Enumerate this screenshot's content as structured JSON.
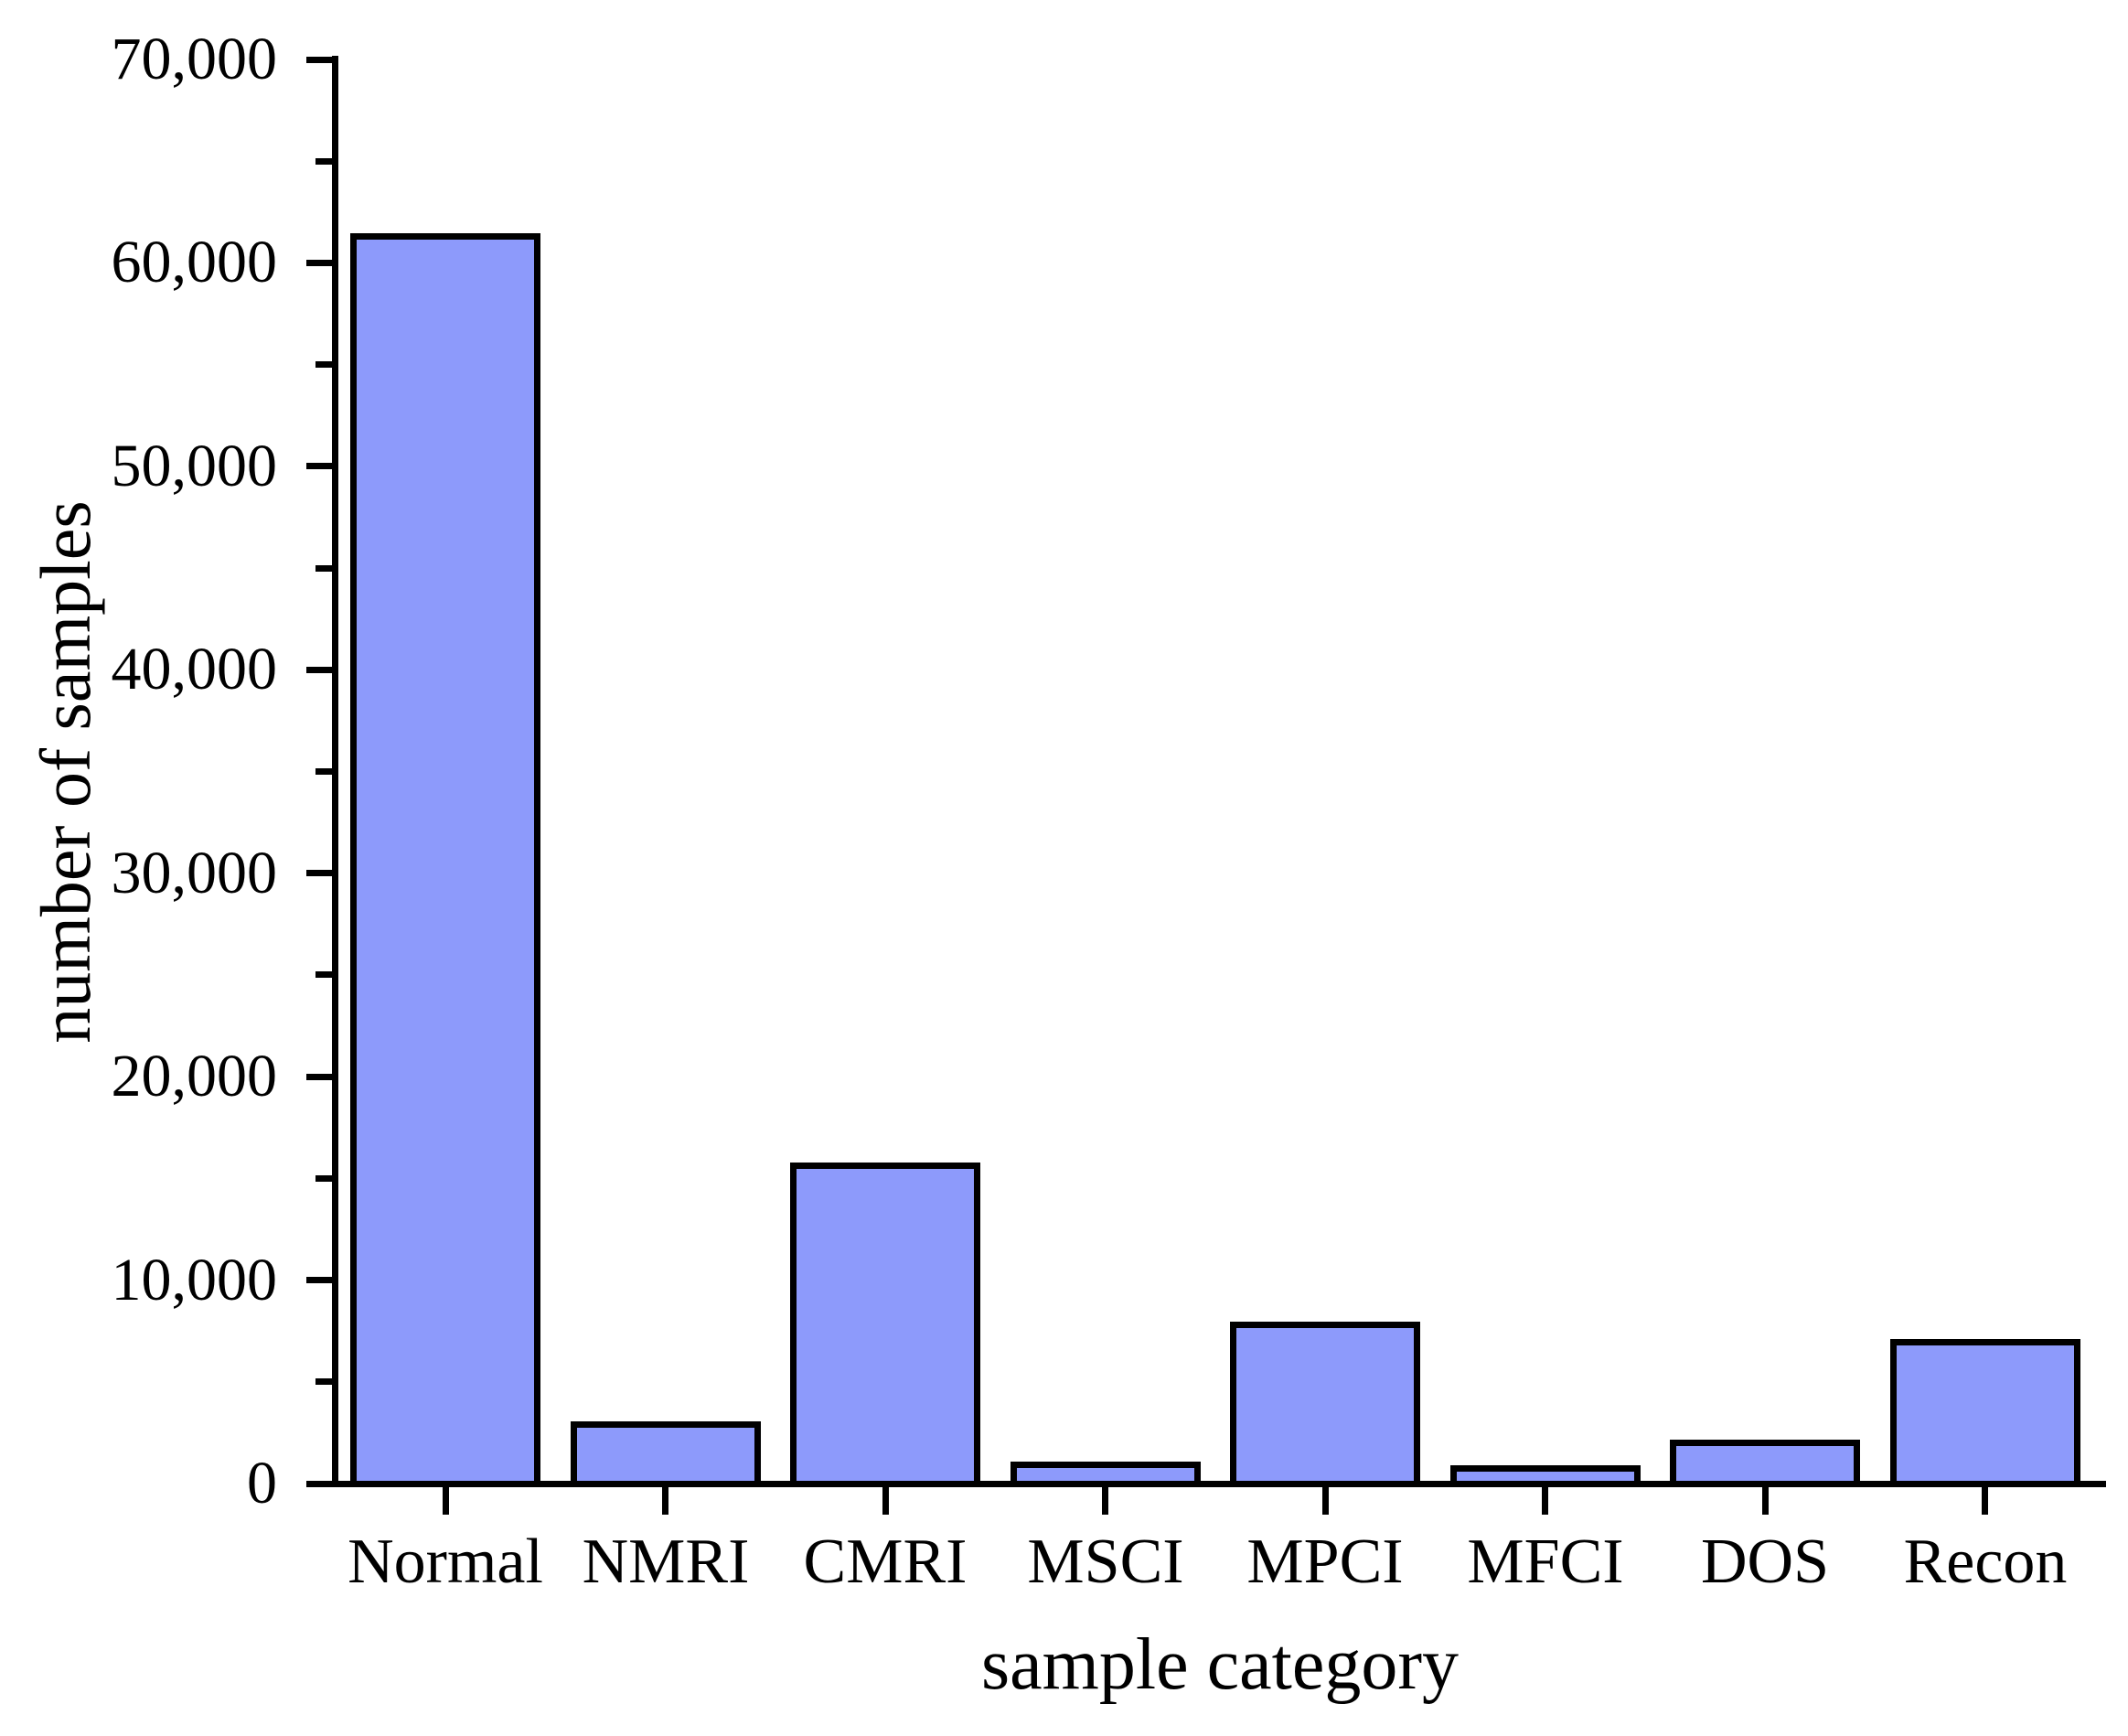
{
  "chart_data": {
    "type": "bar",
    "title": "",
    "categories": [
      "Normal",
      "NMRI",
      "CMRI",
      "MSCI",
      "MPCI",
      "MFCI",
      "DOS",
      "Recon"
    ],
    "values": [
      61156,
      2763,
      15466,
      782,
      7637,
      573,
      1837,
      6805
    ],
    "xlabel": "sample category",
    "ylabel": "number of samples",
    "ylim": [
      0,
      70000
    ],
    "y_major_ticks": [
      0,
      10000,
      20000,
      30000,
      40000,
      50000,
      60000,
      70000
    ],
    "y_tick_labels": [
      "0",
      "10,000",
      "20,000",
      "30,000",
      "40,000",
      "50,000",
      "60,000",
      "70,000"
    ],
    "y_minor_step": 5000,
    "grid": false,
    "legend": "none",
    "bar_fill_color": "#8D9AFB",
    "bar_border_color": "#000000",
    "axis_color": "#000000",
    "background_color": "#FFFFFF"
  }
}
